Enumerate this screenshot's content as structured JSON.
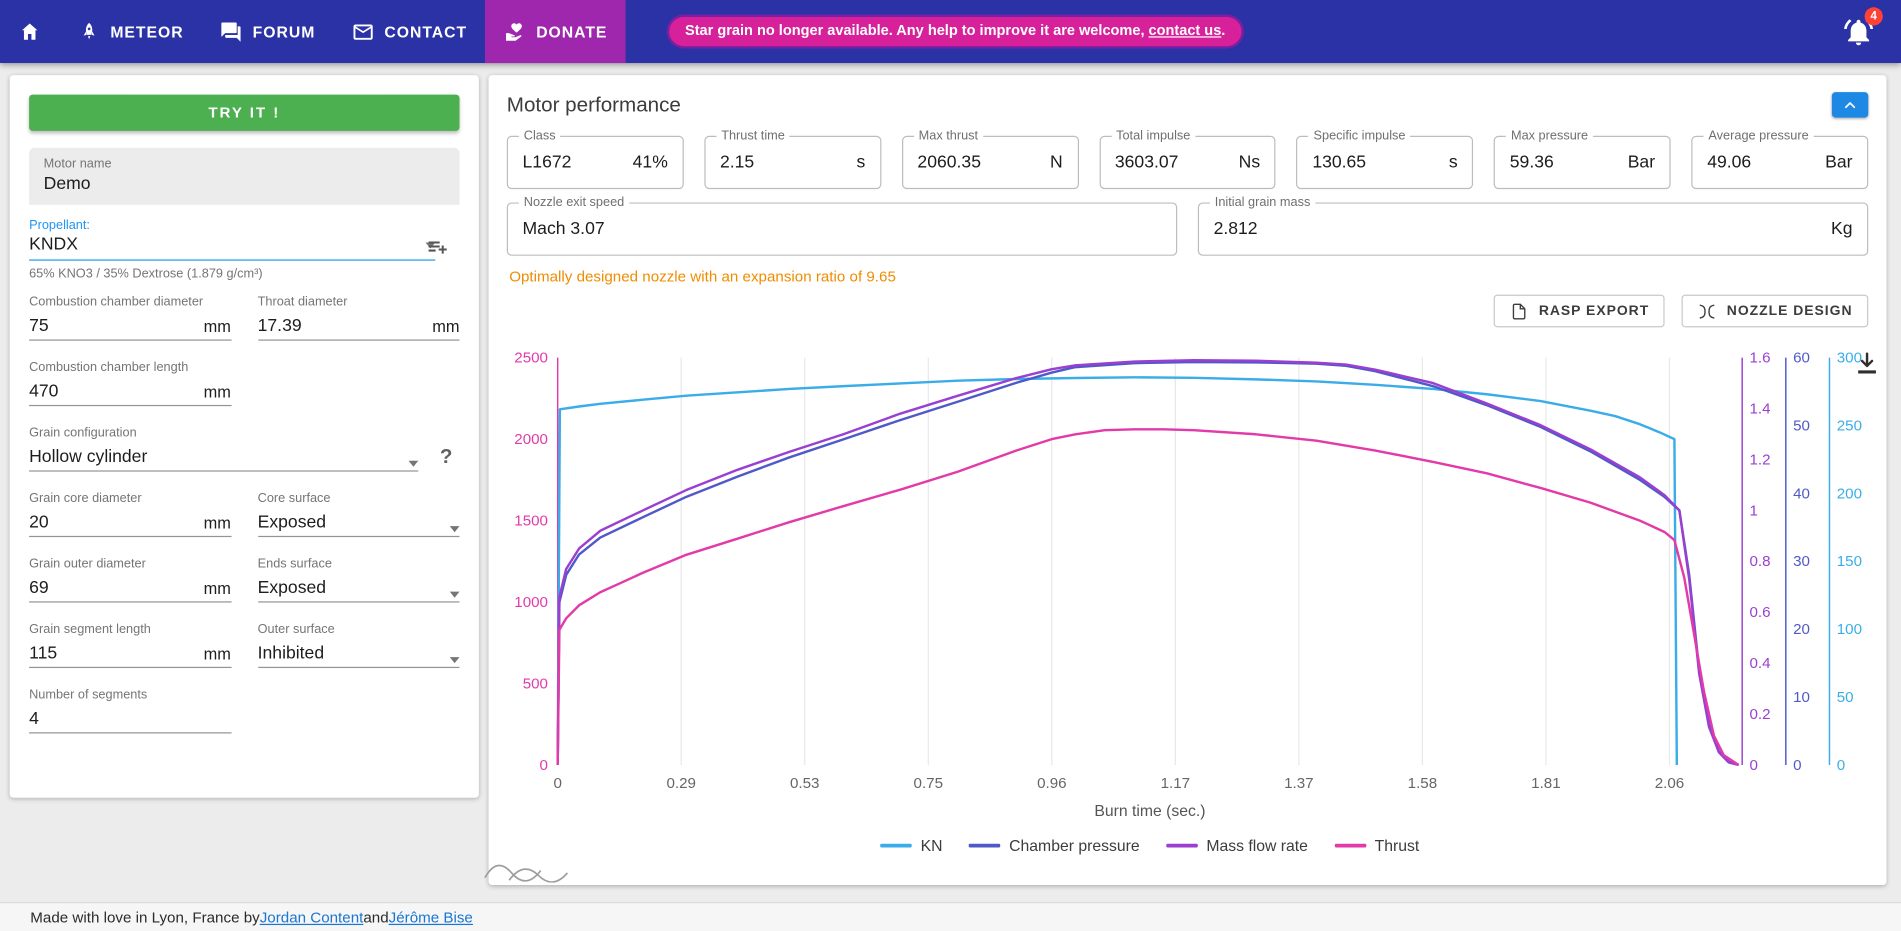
{
  "colors": {
    "navbar": "#2b32a6",
    "donate": "#9e27ae",
    "banner": "#d6219a",
    "banner_border": "#7b1fa2",
    "badge_red": "#fe4336",
    "try_button": "#4caf50",
    "propellant_blue": "#2196f3",
    "collapse_button": "#1e88e5",
    "note_orange": "#ef8c00",
    "link_blue": "#1976d2"
  },
  "icons": {
    "help": "?"
  },
  "navbar": {
    "items": [
      {
        "id": "home",
        "label": ""
      },
      {
        "id": "meteor",
        "label": "METEOR"
      },
      {
        "id": "forum",
        "label": "FORUM"
      },
      {
        "id": "contact",
        "label": "CONTACT"
      },
      {
        "id": "donate",
        "label": "DONATE"
      }
    ],
    "banner": {
      "text": "Star grain no longer available. Any help to improve it are welcome, ",
      "link_text": "contact us",
      "suffix": "."
    },
    "notification_count": "4"
  },
  "sidebar": {
    "try_button": "TRY IT !",
    "motor_name": {
      "label": "Motor name",
      "value": "Demo"
    },
    "propellant": {
      "label": "Propellant:",
      "value": "KNDX",
      "description": "65% KNO3 / 35% Dextrose (1.879 g/cm³)"
    },
    "chamber_diameter": {
      "label": "Combustion chamber diameter",
      "value": "75",
      "unit": "mm"
    },
    "throat_diameter": {
      "label": "Throat diameter",
      "value": "17.39",
      "unit": "mm"
    },
    "chamber_length": {
      "label": "Combustion chamber length",
      "value": "470",
      "unit": "mm"
    },
    "grain_config": {
      "label": "Grain configuration",
      "value": "Hollow cylinder"
    },
    "core_diameter": {
      "label": "Grain core diameter",
      "value": "20",
      "unit": "mm"
    },
    "core_surface": {
      "label": "Core surface",
      "value": "Exposed"
    },
    "outer_diameter": {
      "label": "Grain outer diameter",
      "value": "69",
      "unit": "mm"
    },
    "ends_surface": {
      "label": "Ends surface",
      "value": "Exposed"
    },
    "segment_length": {
      "label": "Grain segment length",
      "value": "115",
      "unit": "mm"
    },
    "outer_surface": {
      "label": "Outer surface",
      "value": "Inhibited"
    },
    "segments": {
      "label": "Number of segments",
      "value": "4"
    }
  },
  "performance": {
    "title": "Motor performance",
    "fields": [
      {
        "label": "Class",
        "value": "L1672",
        "suffix": "41%"
      },
      {
        "label": "Thrust time",
        "value": "2.15",
        "suffix": "s"
      },
      {
        "label": "Max thrust",
        "value": "2060.35",
        "suffix": "N"
      },
      {
        "label": "Total impulse",
        "value": "3603.07",
        "suffix": "Ns"
      },
      {
        "label": "Specific impulse",
        "value": "130.65",
        "suffix": "s"
      },
      {
        "label": "Max pressure",
        "value": "59.36",
        "suffix": "Bar"
      },
      {
        "label": "Average pressure",
        "value": "49.06",
        "suffix": "Bar"
      }
    ],
    "row2": [
      {
        "label": "Nozzle exit speed",
        "value": "Mach 3.07",
        "suffix": ""
      },
      {
        "label": "Initial grain mass",
        "value": "2.812",
        "suffix": "Kg"
      }
    ],
    "nozzle_note": "Optimally designed nozzle with an expansion ratio of 9.65",
    "buttons": {
      "rasp": "RASP EXPORT",
      "nozzle": "NOZZLE DESIGN"
    }
  },
  "chart_data": {
    "type": "line",
    "title": "",
    "xlabel": "Burn time (sec.)",
    "grid_color": "#e8e8e8",
    "legend_position": "bottom",
    "axes": {
      "x": {
        "label": "Burn time (sec.)",
        "tick_values": [
          0,
          0.29,
          0.53,
          0.75,
          0.96,
          1.17,
          1.37,
          1.58,
          1.81,
          2.06
        ],
        "tick_labels": [
          "0",
          "0.29",
          "0.53",
          "0.75",
          "0.96",
          "1.17",
          "1.37",
          "1.58",
          "1.81",
          "2.06"
        ]
      },
      "y": [
        {
          "id": "thrust",
          "side": "left",
          "color": "#e23aa8",
          "max": 2500,
          "tick_values": [
            0,
            500,
            1000,
            1500,
            2000,
            2500
          ],
          "tick_labels": [
            "0",
            "500",
            "1000",
            "1500",
            "2000",
            "2500"
          ]
        },
        {
          "id": "mass",
          "side": "right",
          "color": "#9a3fd1",
          "max": 1.6,
          "tick_values": [
            0,
            0.2,
            0.4,
            0.6,
            0.8,
            1,
            1.2,
            1.4,
            1.6
          ],
          "tick_labels": [
            "0",
            "0.2",
            "0.4",
            "0.6",
            "0.8",
            "1",
            "1.2",
            "1.4",
            "1.6"
          ]
        },
        {
          "id": "pressure",
          "side": "right",
          "color": "#5059c8",
          "max": 60,
          "tick_values": [
            0,
            10,
            20,
            30,
            40,
            50,
            60
          ],
          "tick_labels": [
            "0",
            "10",
            "20",
            "30",
            "40",
            "50",
            "60"
          ]
        },
        {
          "id": "kn",
          "side": "right",
          "color": "#3aade8",
          "max": 300,
          "tick_values": [
            0,
            50,
            100,
            150,
            200,
            250,
            300
          ],
          "tick_labels": [
            "0",
            "50",
            "100",
            "150",
            "200",
            "250",
            "300"
          ]
        }
      ]
    },
    "series": [
      {
        "name": "KN",
        "axis": "kn",
        "color": "#3aade8",
        "points": [
          [
            0,
            0
          ],
          [
            0.005,
            262
          ],
          [
            0.05,
            264
          ],
          [
            0.1,
            266
          ],
          [
            0.2,
            269
          ],
          [
            0.3,
            272
          ],
          [
            0.4,
            274.5
          ],
          [
            0.5,
            277
          ],
          [
            0.6,
            279
          ],
          [
            0.7,
            281
          ],
          [
            0.8,
            283
          ],
          [
            0.9,
            284.3
          ],
          [
            1.0,
            285
          ],
          [
            1.1,
            285.5
          ],
          [
            1.2,
            285.2
          ],
          [
            1.3,
            284
          ],
          [
            1.4,
            282.5
          ],
          [
            1.5,
            280
          ],
          [
            1.6,
            277
          ],
          [
            1.7,
            273
          ],
          [
            1.8,
            268
          ],
          [
            1.9,
            261
          ],
          [
            1.95,
            257
          ],
          [
            2.0,
            251
          ],
          [
            2.04,
            245
          ],
          [
            2.07,
            240
          ],
          [
            2.075,
            0
          ]
        ]
      },
      {
        "name": "Chamber pressure",
        "axis": "pressure",
        "color": "#5059c8",
        "points": [
          [
            0,
            0
          ],
          [
            0.004,
            24
          ],
          [
            0.02,
            28
          ],
          [
            0.05,
            31
          ],
          [
            0.1,
            33.5
          ],
          [
            0.2,
            36.5
          ],
          [
            0.3,
            39.5
          ],
          [
            0.4,
            42.5
          ],
          [
            0.5,
            45.3
          ],
          [
            0.6,
            48
          ],
          [
            0.7,
            50.8
          ],
          [
            0.8,
            53.5
          ],
          [
            0.9,
            56.3
          ],
          [
            0.96,
            57.8
          ],
          [
            1.0,
            58.6
          ],
          [
            1.1,
            59.2
          ],
          [
            1.2,
            59.36
          ],
          [
            1.3,
            59.3
          ],
          [
            1.4,
            59.1
          ],
          [
            1.45,
            58.8
          ],
          [
            1.5,
            58
          ],
          [
            1.6,
            55.8
          ],
          [
            1.7,
            53
          ],
          [
            1.8,
            49.8
          ],
          [
            1.9,
            46.2
          ],
          [
            2.0,
            42
          ],
          [
            2.05,
            39.5
          ],
          [
            2.08,
            37.5
          ],
          [
            2.1,
            28
          ],
          [
            2.12,
            14
          ],
          [
            2.14,
            6
          ],
          [
            2.16,
            2
          ],
          [
            2.18,
            0.5
          ],
          [
            2.2,
            0
          ]
        ]
      },
      {
        "name": "Mass flow rate",
        "axis": "mass",
        "color": "#9a3fd1",
        "points": [
          [
            0,
            0
          ],
          [
            0.004,
            0.66
          ],
          [
            0.02,
            0.77
          ],
          [
            0.05,
            0.85
          ],
          [
            0.1,
            0.92
          ],
          [
            0.2,
            1.0
          ],
          [
            0.3,
            1.08
          ],
          [
            0.4,
            1.16
          ],
          [
            0.5,
            1.23
          ],
          [
            0.6,
            1.3
          ],
          [
            0.7,
            1.38
          ],
          [
            0.8,
            1.45
          ],
          [
            0.9,
            1.52
          ],
          [
            0.96,
            1.555
          ],
          [
            1.0,
            1.57
          ],
          [
            1.1,
            1.585
          ],
          [
            1.2,
            1.59
          ],
          [
            1.3,
            1.588
          ],
          [
            1.4,
            1.58
          ],
          [
            1.45,
            1.573
          ],
          [
            1.5,
            1.553
          ],
          [
            1.6,
            1.5
          ],
          [
            1.7,
            1.42
          ],
          [
            1.8,
            1.335
          ],
          [
            1.9,
            1.24
          ],
          [
            2.0,
            1.13
          ],
          [
            2.05,
            1.06
          ],
          [
            2.08,
            1.0
          ],
          [
            2.1,
            0.73
          ],
          [
            2.12,
            0.36
          ],
          [
            2.14,
            0.15
          ],
          [
            2.16,
            0.05
          ],
          [
            2.18,
            0.01
          ],
          [
            2.2,
            0
          ]
        ]
      },
      {
        "name": "Thrust",
        "axis": "thrust",
        "color": "#e23aa8",
        "points": [
          [
            0,
            0
          ],
          [
            0.004,
            830
          ],
          [
            0.02,
            900
          ],
          [
            0.05,
            980
          ],
          [
            0.1,
            1060
          ],
          [
            0.15,
            1120
          ],
          [
            0.2,
            1180
          ],
          [
            0.3,
            1290
          ],
          [
            0.4,
            1390
          ],
          [
            0.5,
            1490
          ],
          [
            0.6,
            1590
          ],
          [
            0.7,
            1690
          ],
          [
            0.8,
            1800
          ],
          [
            0.9,
            1930
          ],
          [
            0.96,
            2000
          ],
          [
            1.0,
            2030
          ],
          [
            1.05,
            2055
          ],
          [
            1.1,
            2060
          ],
          [
            1.15,
            2060
          ],
          [
            1.2,
            2055
          ],
          [
            1.3,
            2030
          ],
          [
            1.4,
            1990
          ],
          [
            1.5,
            1930
          ],
          [
            1.6,
            1860
          ],
          [
            1.7,
            1790
          ],
          [
            1.8,
            1700
          ],
          [
            1.9,
            1610
          ],
          [
            2.0,
            1500
          ],
          [
            2.05,
            1430
          ],
          [
            2.07,
            1380
          ],
          [
            2.09,
            1150
          ],
          [
            2.11,
            800
          ],
          [
            2.13,
            450
          ],
          [
            2.15,
            180
          ],
          [
            2.17,
            60
          ],
          [
            2.2,
            0
          ]
        ]
      }
    ]
  },
  "footer": {
    "prefix": "Made with love in Lyon, France by ",
    "link1": "Jordan Content",
    "middle": " and ",
    "link2": "Jérôme Bise"
  }
}
